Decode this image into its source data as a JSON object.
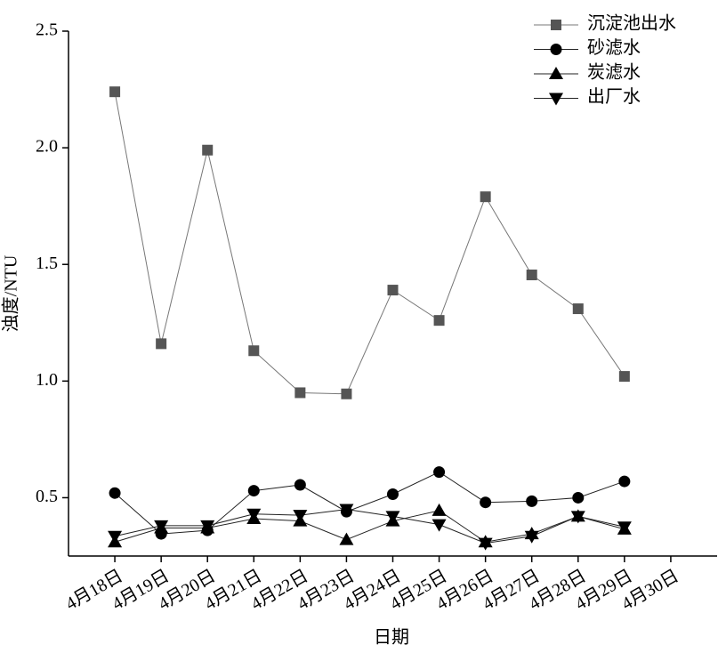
{
  "chart_data": {
    "type": "line",
    "categories": [
      "4月18日",
      "4月19日",
      "4月20日",
      "4月21日",
      "4月22日",
      "4月23日",
      "4月24日",
      "4月25日",
      "4月26日",
      "4月27日",
      "4月28日",
      "4月29日",
      "4月30日"
    ],
    "series": [
      {
        "name": "沉淀池出水",
        "color": "#555555",
        "marker": "square",
        "values": [
          2.24,
          1.16,
          1.99,
          1.13,
          0.95,
          0.945,
          1.39,
          1.26,
          1.79,
          1.455,
          1.31,
          1.02,
          null
        ]
      },
      {
        "name": "砂滤水",
        "color": "#000000",
        "marker": "circle",
        "values": [
          0.52,
          0.345,
          0.36,
          0.53,
          0.555,
          0.44,
          0.515,
          0.61,
          0.48,
          0.485,
          0.5,
          0.57,
          null
        ]
      },
      {
        "name": "炭滤水",
        "color": "#000000",
        "marker": "triangle-up",
        "values": [
          0.31,
          0.37,
          0.37,
          0.41,
          0.4,
          0.32,
          0.4,
          0.445,
          0.31,
          0.345,
          0.42,
          0.365,
          null
        ]
      },
      {
        "name": "出厂水",
        "color": "#000000",
        "marker": "triangle-down",
        "values": [
          0.335,
          0.38,
          0.38,
          0.43,
          0.425,
          0.45,
          0.42,
          0.385,
          0.305,
          0.335,
          0.42,
          0.375,
          null
        ]
      }
    ],
    "x_label": "日期",
    "y_label": "浊度/NTU",
    "ylim": [
      0.25,
      2.5
    ],
    "yticks": [
      {
        "value": 0.5,
        "label": "0.5"
      },
      {
        "value": 1,
        "label": "1.0"
      },
      1.5,
      {
        "value": 2,
        "label": "2.0"
      },
      2.5
    ],
    "legend": "top-right"
  }
}
